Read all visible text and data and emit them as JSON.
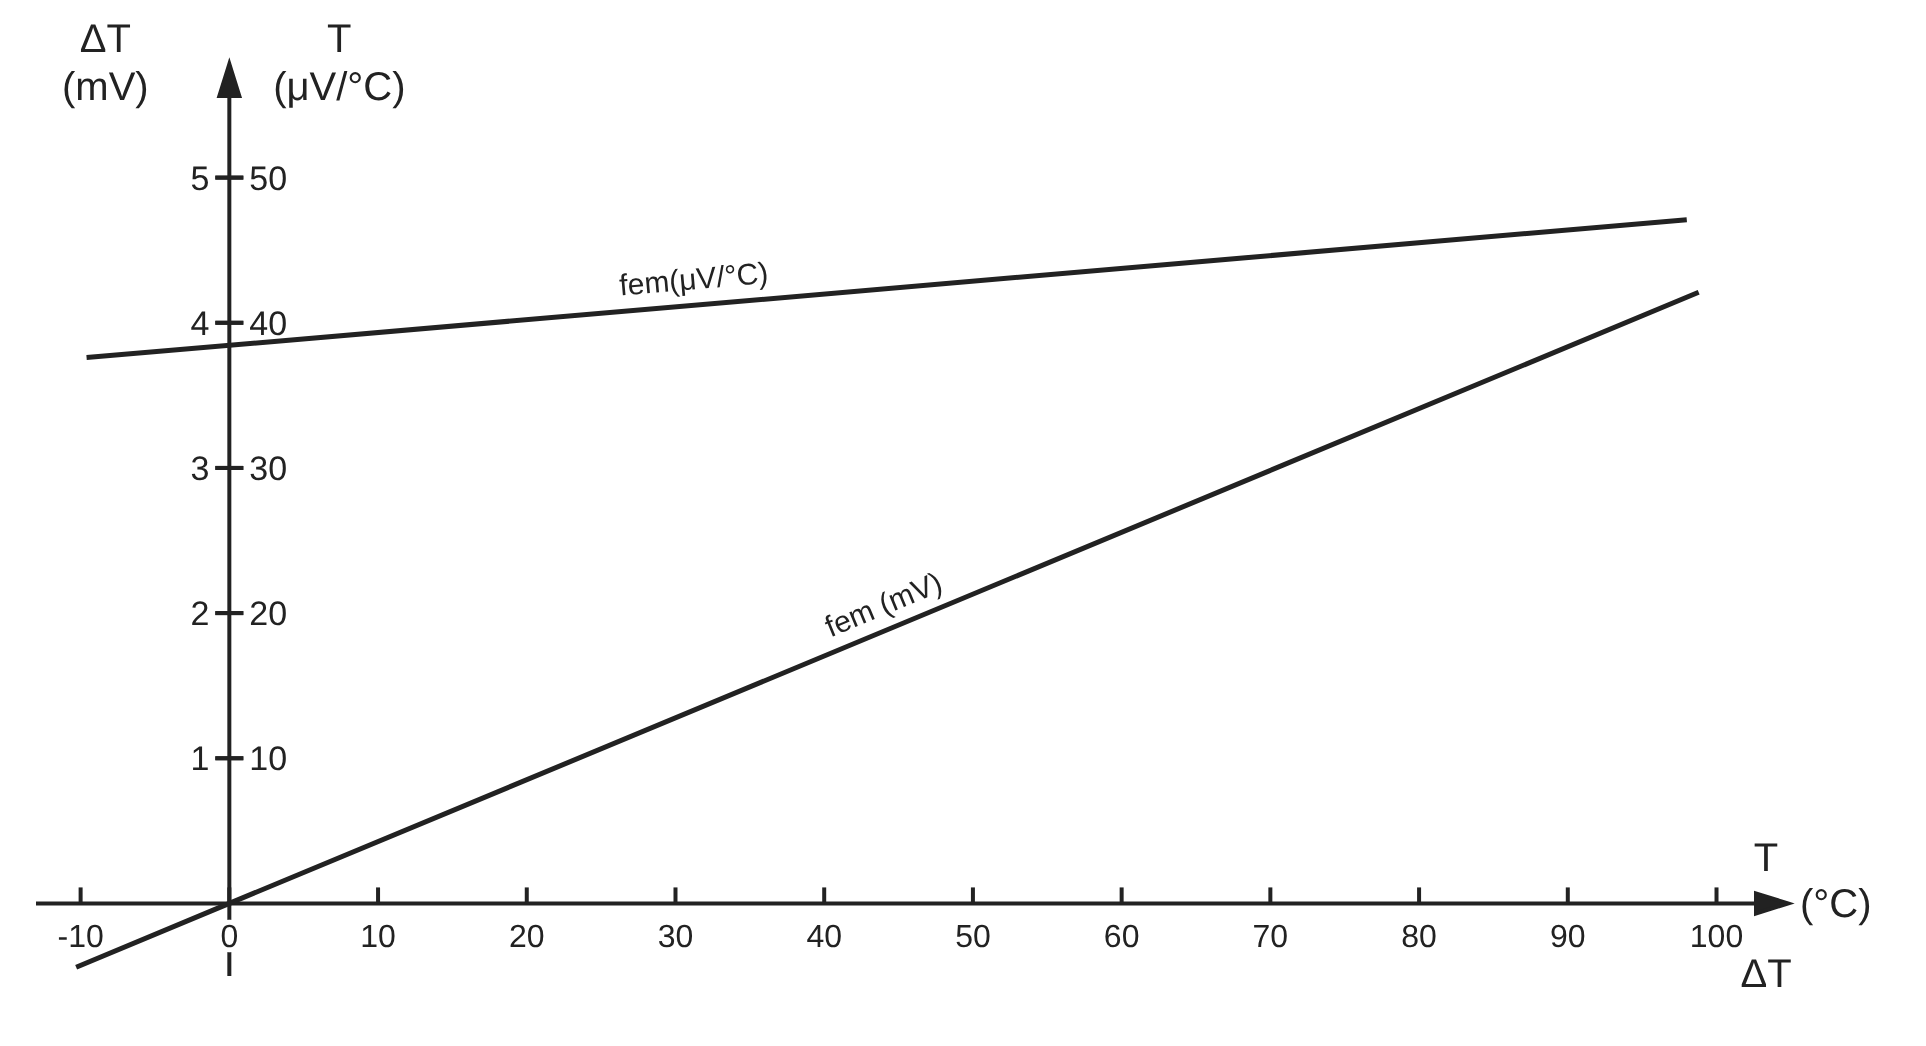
{
  "chart_data": {
    "type": "line",
    "xlabel": "T",
    "ylabel": "ΔT\n(mV)",
    "y2label": "T\n(μV/°C)",
    "annotations": [
      "(°C)",
      "ΔT"
    ],
    "xlim": [
      -13,
      104
    ],
    "xticks": [
      -10,
      0,
      10,
      20,
      30,
      40,
      50,
      60,
      70,
      80,
      90,
      100
    ],
    "ylim": [
      -0.5,
      5.7
    ],
    "yticks": [
      1,
      2,
      3,
      4,
      5
    ],
    "y2lim": [
      -5,
      57
    ],
    "y2ticks": [
      10,
      20,
      30,
      40,
      50
    ],
    "grid": false,
    "marker": "none",
    "line_style": "solid",
    "series": [
      {
        "name": "fem(μV/°C)",
        "color": "#222222",
        "axis": "y2",
        "x": [
          -9.6,
          98
        ],
        "values": [
          37.6,
          47.1
        ]
      },
      {
        "name": "fem (mV)",
        "color": "#222222",
        "x": [
          -10.3,
          0,
          98.8
        ],
        "values": [
          -0.44,
          0,
          4.21
        ]
      }
    ]
  }
}
